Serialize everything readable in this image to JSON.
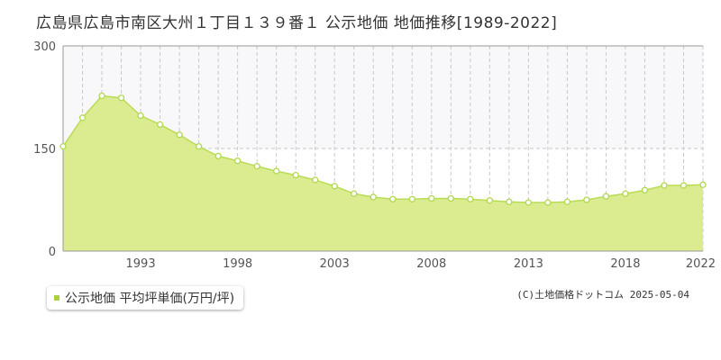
{
  "title": "広島県広島市南区大州１丁目１３９番１ 公示地価 地価推移[1989-2022]",
  "legend_label": "公示地価 平均坪単価(万円/坪)",
  "copyright": "(C)土地価格ドットコム 2025-05-04",
  "colors": {
    "fill": "#dbeb8f",
    "line": "#b9dc57",
    "marker_stroke": "#b0d84e",
    "marker_fill": "#ffffff",
    "upper_band": "#f8f7f9",
    "grid_dashed": "#c8c8c8",
    "axis": "#999999",
    "legend_marker": "#a9d13f"
  },
  "chart_data": {
    "type": "area",
    "series": [
      {
        "name": "公示地価 平均坪単価(万円/坪)",
        "x": [
          1989,
          1990,
          1991,
          1992,
          1993,
          1994,
          1995,
          1996,
          1997,
          1998,
          1999,
          2000,
          2001,
          2002,
          2003,
          2004,
          2005,
          2006,
          2007,
          2008,
          2009,
          2010,
          2011,
          2012,
          2013,
          2014,
          2015,
          2016,
          2017,
          2018,
          2019,
          2020,
          2021,
          2022
        ],
        "values": [
          153,
          195,
          227,
          224,
          198,
          185,
          170,
          153,
          139,
          132,
          124,
          117,
          111,
          104,
          95,
          84,
          79,
          76,
          76,
          77,
          77,
          76,
          74,
          72,
          71,
          71,
          72,
          75,
          80,
          84,
          89,
          96,
          96,
          97
        ]
      }
    ],
    "x_tick_labels": [
      "1993",
      "1998",
      "2003",
      "2008",
      "2013",
      "2018",
      "2022"
    ],
    "x_ticks": [
      1993,
      1998,
      2003,
      2008,
      2013,
      2018,
      2022
    ],
    "y_ticks": [
      0,
      150,
      300
    ],
    "y_tick_labels": [
      "0",
      "150",
      "300"
    ],
    "xlim": [
      1989,
      2022
    ],
    "ylim": [
      0,
      300
    ],
    "grid": true,
    "legend_position": "bottom-left"
  }
}
